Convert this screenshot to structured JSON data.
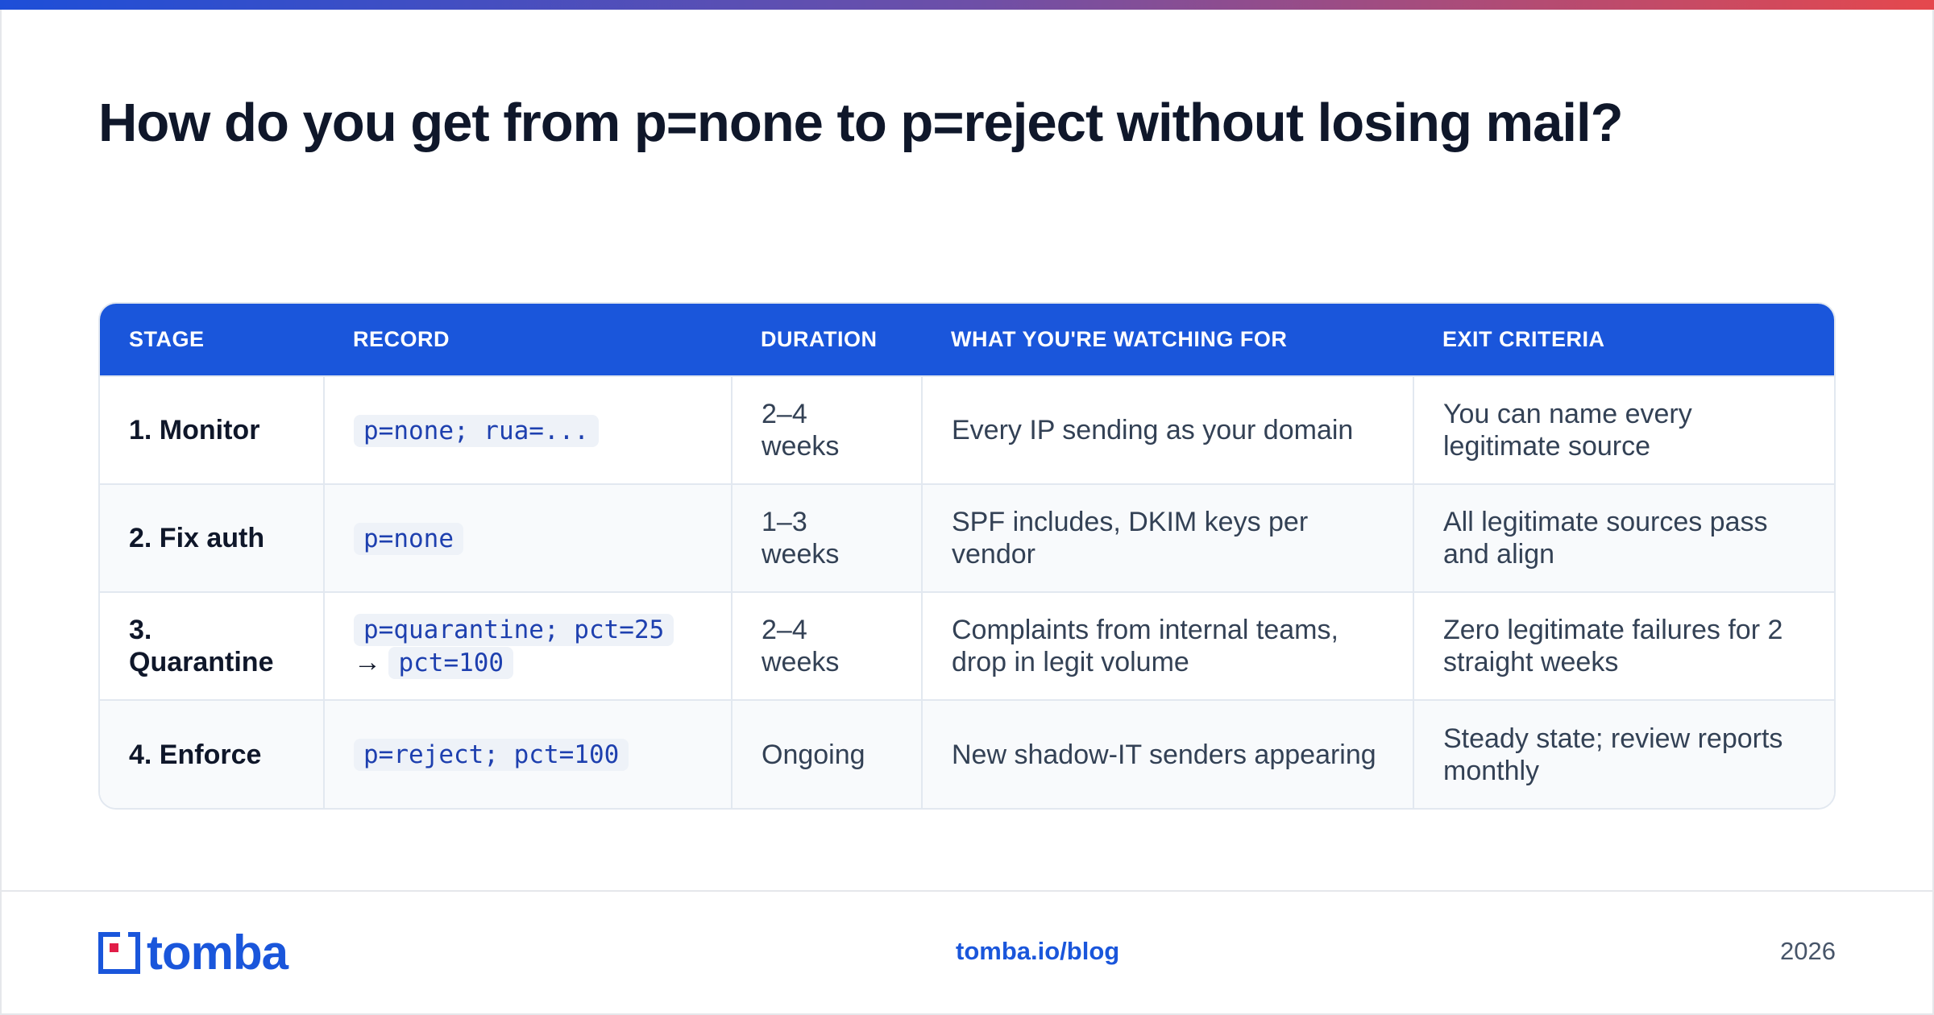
{
  "title": "How do you get from p=none to p=reject without losing mail?",
  "colors": {
    "accent": "#1a56db",
    "gradient_start": "#1d4ed8",
    "gradient_end": "#e5484d"
  },
  "table": {
    "headers": [
      "STAGE",
      "RECORD",
      "DURATION",
      "WHAT YOU'RE WATCHING FOR",
      "EXIT CRITERIA"
    ],
    "rows": [
      {
        "stage": "1. Monitor",
        "record": "p=none; rua=...",
        "record_next": "",
        "duration": "2–4 weeks",
        "watching": "Every IP sending as your domain",
        "exit": "You can name every legitimate source"
      },
      {
        "stage": "2. Fix auth",
        "record": "p=none",
        "record_next": "",
        "duration": "1–3 weeks",
        "watching": "SPF includes, DKIM keys per vendor",
        "exit": "All legitimate sources pass and align"
      },
      {
        "stage": "3. Quarantine",
        "record": "p=quarantine; pct=25",
        "record_arrow": "→",
        "record_next": "pct=100",
        "duration": "2–4 weeks",
        "watching": "Complaints from internal teams, drop in legit volume",
        "exit": "Zero legitimate failures for 2 straight weeks"
      },
      {
        "stage": "4. Enforce",
        "record": "p=reject; pct=100",
        "record_next": "",
        "duration": "Ongoing",
        "watching": "New shadow-IT senders appearing",
        "exit": "Steady state; review reports monthly"
      }
    ]
  },
  "footer": {
    "logo_text": "tomba",
    "logo_icon": "tomba-logo-icon",
    "link": "tomba.io/blog",
    "year": "2026"
  }
}
